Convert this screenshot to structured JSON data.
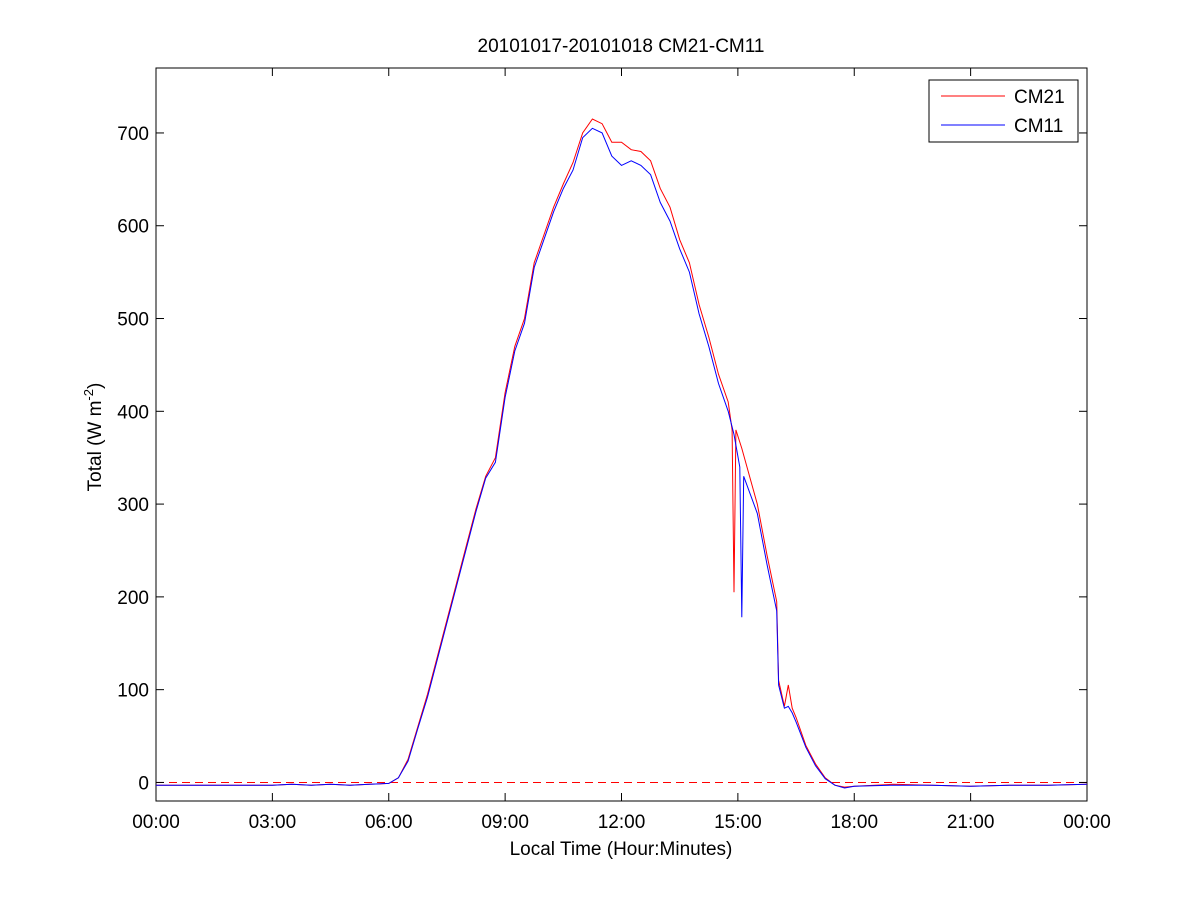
{
  "chart_data": {
    "type": "line",
    "title": "20101017-20101018 CM21-CM11",
    "xlabel": "Local Time (Hour:Minutes)",
    "ylabel": {
      "base": "Total (W m",
      "sup": "-2",
      "close": ")"
    },
    "x_unit": "hours",
    "xlim": [
      0,
      24
    ],
    "ylim": [
      -20,
      770
    ],
    "x_ticks": [
      {
        "value": 0,
        "label": "00:00"
      },
      {
        "value": 3,
        "label": "03:00"
      },
      {
        "value": 6,
        "label": "06:00"
      },
      {
        "value": 9,
        "label": "09:00"
      },
      {
        "value": 12,
        "label": "12:00"
      },
      {
        "value": 15,
        "label": "15:00"
      },
      {
        "value": 18,
        "label": "18:00"
      },
      {
        "value": 21,
        "label": "21:00"
      },
      {
        "value": 24,
        "label": "00:00"
      }
    ],
    "y_ticks": [
      {
        "value": 0,
        "label": "0"
      },
      {
        "value": 100,
        "label": "100"
      },
      {
        "value": 200,
        "label": "200"
      },
      {
        "value": 300,
        "label": "300"
      },
      {
        "value": 400,
        "label": "400"
      },
      {
        "value": 500,
        "label": "500"
      },
      {
        "value": 600,
        "label": "600"
      },
      {
        "value": 700,
        "label": "700"
      }
    ],
    "grid": false,
    "legend_position": "top-right",
    "reference_line": {
      "y": 0,
      "color": "#ff0000",
      "style": "dashed"
    },
    "series": [
      {
        "name": "CM21",
        "color": "#ff0000",
        "points": [
          [
            0,
            -3
          ],
          [
            1,
            -3
          ],
          [
            2,
            -3
          ],
          [
            3,
            -3
          ],
          [
            3.5,
            -2
          ],
          [
            4,
            -3
          ],
          [
            4.5,
            -2
          ],
          [
            5,
            -3
          ],
          [
            5.5,
            -2
          ],
          [
            6,
            -1
          ],
          [
            6.25,
            5
          ],
          [
            6.5,
            25
          ],
          [
            6.75,
            60
          ],
          [
            7,
            95
          ],
          [
            7.25,
            135
          ],
          [
            7.5,
            175
          ],
          [
            7.75,
            215
          ],
          [
            8,
            255
          ],
          [
            8.25,
            295
          ],
          [
            8.5,
            330
          ],
          [
            8.75,
            350
          ],
          [
            9,
            420
          ],
          [
            9.25,
            470
          ],
          [
            9.5,
            500
          ],
          [
            9.75,
            560
          ],
          [
            10,
            590
          ],
          [
            10.25,
            620
          ],
          [
            10.5,
            645
          ],
          [
            10.75,
            668
          ],
          [
            11,
            700
          ],
          [
            11.25,
            715
          ],
          [
            11.5,
            710
          ],
          [
            11.75,
            690
          ],
          [
            12,
            690
          ],
          [
            12.25,
            682
          ],
          [
            12.5,
            680
          ],
          [
            12.75,
            670
          ],
          [
            13,
            640
          ],
          [
            13.25,
            620
          ],
          [
            13.5,
            585
          ],
          [
            13.75,
            560
          ],
          [
            14,
            515
          ],
          [
            14.25,
            480
          ],
          [
            14.5,
            440
          ],
          [
            14.75,
            410
          ],
          [
            14.85,
            380
          ],
          [
            14.9,
            205
          ],
          [
            14.95,
            380
          ],
          [
            15.1,
            360
          ],
          [
            15.5,
            300
          ],
          [
            15.75,
            245
          ],
          [
            16,
            195
          ],
          [
            16.05,
            110
          ],
          [
            16.2,
            82
          ],
          [
            16.3,
            105
          ],
          [
            16.4,
            80
          ],
          [
            16.5,
            70
          ],
          [
            16.75,
            40
          ],
          [
            17,
            20
          ],
          [
            17.25,
            5
          ],
          [
            17.5,
            -3
          ],
          [
            17.75,
            -5
          ],
          [
            18,
            -4
          ],
          [
            19,
            -2
          ],
          [
            20,
            -3
          ],
          [
            21,
            -4
          ],
          [
            22,
            -3
          ],
          [
            23,
            -3
          ],
          [
            24,
            -2
          ]
        ]
      },
      {
        "name": "CM11",
        "color": "#0000ff",
        "points": [
          [
            0,
            -3
          ],
          [
            1,
            -3
          ],
          [
            2,
            -3
          ],
          [
            3,
            -3
          ],
          [
            3.5,
            -2
          ],
          [
            4,
            -3
          ],
          [
            4.5,
            -2
          ],
          [
            5,
            -3
          ],
          [
            5.5,
            -2
          ],
          [
            6,
            -1
          ],
          [
            6.25,
            5
          ],
          [
            6.5,
            23
          ],
          [
            6.75,
            58
          ],
          [
            7,
            92
          ],
          [
            7.25,
            132
          ],
          [
            7.5,
            172
          ],
          [
            7.75,
            212
          ],
          [
            8,
            252
          ],
          [
            8.25,
            292
          ],
          [
            8.5,
            328
          ],
          [
            8.75,
            345
          ],
          [
            9,
            415
          ],
          [
            9.25,
            465
          ],
          [
            9.5,
            495
          ],
          [
            9.75,
            555
          ],
          [
            10,
            585
          ],
          [
            10.25,
            615
          ],
          [
            10.5,
            640
          ],
          [
            10.75,
            660
          ],
          [
            11,
            695
          ],
          [
            11.25,
            705
          ],
          [
            11.5,
            700
          ],
          [
            11.75,
            675
          ],
          [
            12,
            665
          ],
          [
            12.25,
            670
          ],
          [
            12.5,
            665
          ],
          [
            12.75,
            655
          ],
          [
            13,
            625
          ],
          [
            13.25,
            605
          ],
          [
            13.5,
            575
          ],
          [
            13.75,
            550
          ],
          [
            14,
            505
          ],
          [
            14.25,
            470
          ],
          [
            14.5,
            430
          ],
          [
            14.75,
            400
          ],
          [
            14.9,
            375
          ],
          [
            15.05,
            340
          ],
          [
            15.1,
            178
          ],
          [
            15.15,
            330
          ],
          [
            15.5,
            290
          ],
          [
            15.75,
            235
          ],
          [
            16,
            185
          ],
          [
            16.05,
            105
          ],
          [
            16.2,
            80
          ],
          [
            16.3,
            82
          ],
          [
            16.4,
            75
          ],
          [
            16.5,
            65
          ],
          [
            16.75,
            38
          ],
          [
            17,
            18
          ],
          [
            17.25,
            4
          ],
          [
            17.5,
            -3
          ],
          [
            17.75,
            -6
          ],
          [
            18,
            -4
          ],
          [
            19,
            -3
          ],
          [
            20,
            -3
          ],
          [
            21,
            -4
          ],
          [
            22,
            -3
          ],
          [
            23,
            -3
          ],
          [
            24,
            -2
          ]
        ]
      }
    ]
  }
}
